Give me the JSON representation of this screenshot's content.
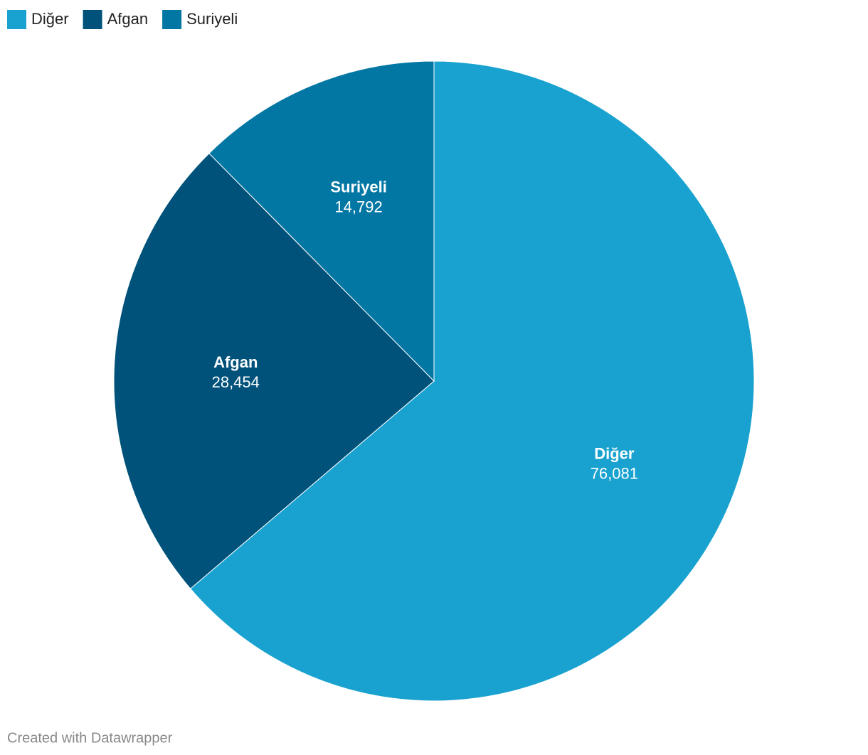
{
  "chart_data": {
    "type": "pie",
    "categories": [
      "Diğer",
      "Afgan",
      "Suriyeli"
    ],
    "values": [
      76081,
      28454,
      14792
    ],
    "value_labels": [
      "76,081",
      "28,454",
      "14,792"
    ],
    "colors": [
      "#19a2cf",
      "#00527a",
      "#0277a4"
    ],
    "legend": "top-left"
  },
  "credit": "Created with Datawrapper"
}
